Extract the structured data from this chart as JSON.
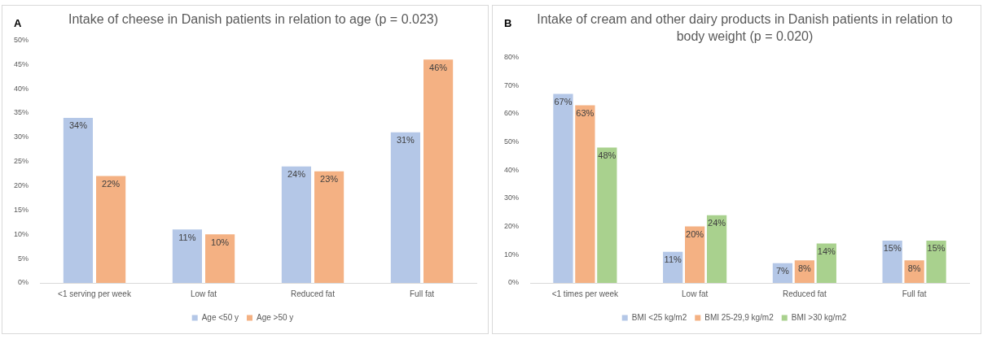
{
  "chart_data": [
    {
      "type": "bar",
      "title": "Intake of cheese in Danish patients in relation to age (p = 0.023)",
      "annotations": [
        "A"
      ],
      "categories": [
        "<1 serving per week",
        "Low fat",
        "Reduced fat",
        "Full fat"
      ],
      "series": [
        {
          "name": "Age <50 y",
          "color": "#b4c7e7",
          "values": [
            34,
            11,
            24,
            31
          ],
          "value_labels": [
            "34%",
            "11%",
            "24%",
            "31%"
          ]
        },
        {
          "name": "Age >50 y",
          "color": "#f4b183",
          "values": [
            22,
            10,
            23,
            46
          ],
          "value_labels": [
            "22%",
            "10%",
            "23%",
            "46%"
          ]
        }
      ],
      "ylim": [
        0,
        50
      ],
      "yticks": [
        {
          "value": 0,
          "label": "0%"
        },
        {
          "value": 5,
          "label": "5%"
        },
        {
          "value": 10,
          "label": "10%"
        },
        {
          "value": 15,
          "label": "15%"
        },
        {
          "value": 20,
          "label": "20%"
        },
        {
          "value": 25,
          "label": "25%"
        },
        {
          "value": 30,
          "label": "30%"
        },
        {
          "value": 35,
          "label": "35%"
        },
        {
          "value": 40,
          "label": "40%"
        },
        {
          "value": 45,
          "label": "45%"
        },
        {
          "value": 50,
          "label": "50%"
        }
      ],
      "legend": "bottom"
    },
    {
      "type": "bar",
      "title": "Intake of cream and other dairy products in Danish patients in relation to body weight (p = 0.020)",
      "annotations": [
        "B"
      ],
      "categories": [
        "<1 times per week",
        "Low fat",
        "Reduced fat",
        "Full fat"
      ],
      "series": [
        {
          "name": "BMI <25 kg/m2",
          "color": "#b4c7e7",
          "values": [
            67,
            11,
            7,
            15
          ],
          "value_labels": [
            "67%",
            "11%",
            "7%",
            "15%"
          ]
        },
        {
          "name": "BMI 25-29,9 kg/m2",
          "color": "#f4b183",
          "values": [
            63,
            20,
            8,
            8
          ],
          "value_labels": [
            "63%",
            "20%",
            "8%",
            "8%"
          ]
        },
        {
          "name": "BMI >30 kg/m2",
          "color": "#a9d18e",
          "values": [
            48,
            24,
            14,
            15
          ],
          "value_labels": [
            "48%",
            "24%",
            "14%",
            "15%"
          ]
        }
      ],
      "ylim": [
        0,
        80
      ],
      "yticks": [
        {
          "value": 0,
          "label": "0%"
        },
        {
          "value": 10,
          "label": "10%"
        },
        {
          "value": 20,
          "label": "20%"
        },
        {
          "value": 30,
          "label": "30%"
        },
        {
          "value": 40,
          "label": "40%"
        },
        {
          "value": 50,
          "label": "50%"
        },
        {
          "value": 60,
          "label": "60%"
        },
        {
          "value": 70,
          "label": "70%"
        },
        {
          "value": 80,
          "label": "80%"
        }
      ],
      "legend": "bottom"
    }
  ]
}
